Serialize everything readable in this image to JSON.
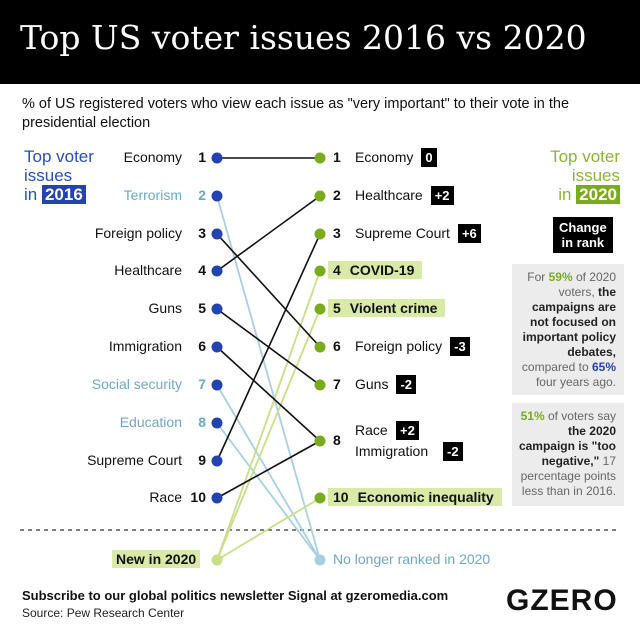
{
  "title": "Top US voter issues 2016 vs 2020",
  "subtitle": "% of US registered voters who view each issue as \"very important\" to their vote in the presidential election",
  "left_header": {
    "line1": "Top voter",
    "line2": "issues",
    "in": "in",
    "year": "2016"
  },
  "right_header": {
    "line1": "Top voter",
    "line2": "issues",
    "in": "in",
    "year": "2020"
  },
  "change_header": {
    "line1": "Change",
    "line2": "in rank"
  },
  "issues_2016": [
    {
      "rank": "1",
      "label": "Economy",
      "dropped": false
    },
    {
      "rank": "2",
      "label": "Terrorism",
      "dropped": true
    },
    {
      "rank": "3",
      "label": "Foreign policy",
      "dropped": false
    },
    {
      "rank": "4",
      "label": "Healthcare",
      "dropped": false
    },
    {
      "rank": "5",
      "label": "Guns",
      "dropped": false
    },
    {
      "rank": "6",
      "label": "Immigration",
      "dropped": false
    },
    {
      "rank": "7",
      "label": "Social security",
      "dropped": true
    },
    {
      "rank": "8",
      "label": "Education",
      "dropped": true
    },
    {
      "rank": "9",
      "label": "Supreme Court",
      "dropped": false
    },
    {
      "rank": "10",
      "label": "Race",
      "dropped": false
    }
  ],
  "issues_2020": [
    {
      "rank": "1",
      "label": "Economy",
      "change": "0",
      "new": false
    },
    {
      "rank": "2",
      "label": "Healthcare",
      "change": "+2",
      "new": false
    },
    {
      "rank": "3",
      "label": "Supreme Court",
      "change": "+6",
      "new": false
    },
    {
      "rank": "4",
      "label": "COVID-19",
      "change": "",
      "new": true
    },
    {
      "rank": "5",
      "label": "Violent crime",
      "change": "",
      "new": true
    },
    {
      "rank": "6",
      "label": "Foreign policy",
      "change": "-3",
      "new": false
    },
    {
      "rank": "7",
      "label": "Guns",
      "change": "-2",
      "new": false
    },
    {
      "rank": "8",
      "label_a": "Race",
      "change_a": "+2",
      "label_b": "Immigration",
      "change_b": "-2",
      "new": false
    },
    {
      "rank": "10",
      "label": "Economic inequality",
      "change": "",
      "new": true
    }
  ],
  "legend": {
    "new_in_2020": "New in 2020",
    "no_longer_ranked": "No longer ranked in 2020"
  },
  "side_note_1": {
    "p1": "For ",
    "v1": "59%",
    "p2": " of 2020 voters, ",
    "b1": "the campaigns are not focused on important policy debates,",
    "p3": " compared to ",
    "v2": "65%",
    "p4": " four years ago."
  },
  "side_note_2": {
    "v1": "51%",
    "p1": " of voters say ",
    "b1": "the 2020 campaign is \"too negative,\"",
    "p2": " 17 percentage points less than in 2016."
  },
  "footer": {
    "subscribe": "Subscribe to our global politics newsletter Signal at gzeromedia.com",
    "source": "Source: Pew Research Center",
    "logo": "GZERO"
  },
  "colors": {
    "blue": "#2443b0",
    "light_blue": "#a9cfe3",
    "green": "#7aab1e",
    "light_green": "#d9e9a8",
    "black": "#000000"
  }
}
